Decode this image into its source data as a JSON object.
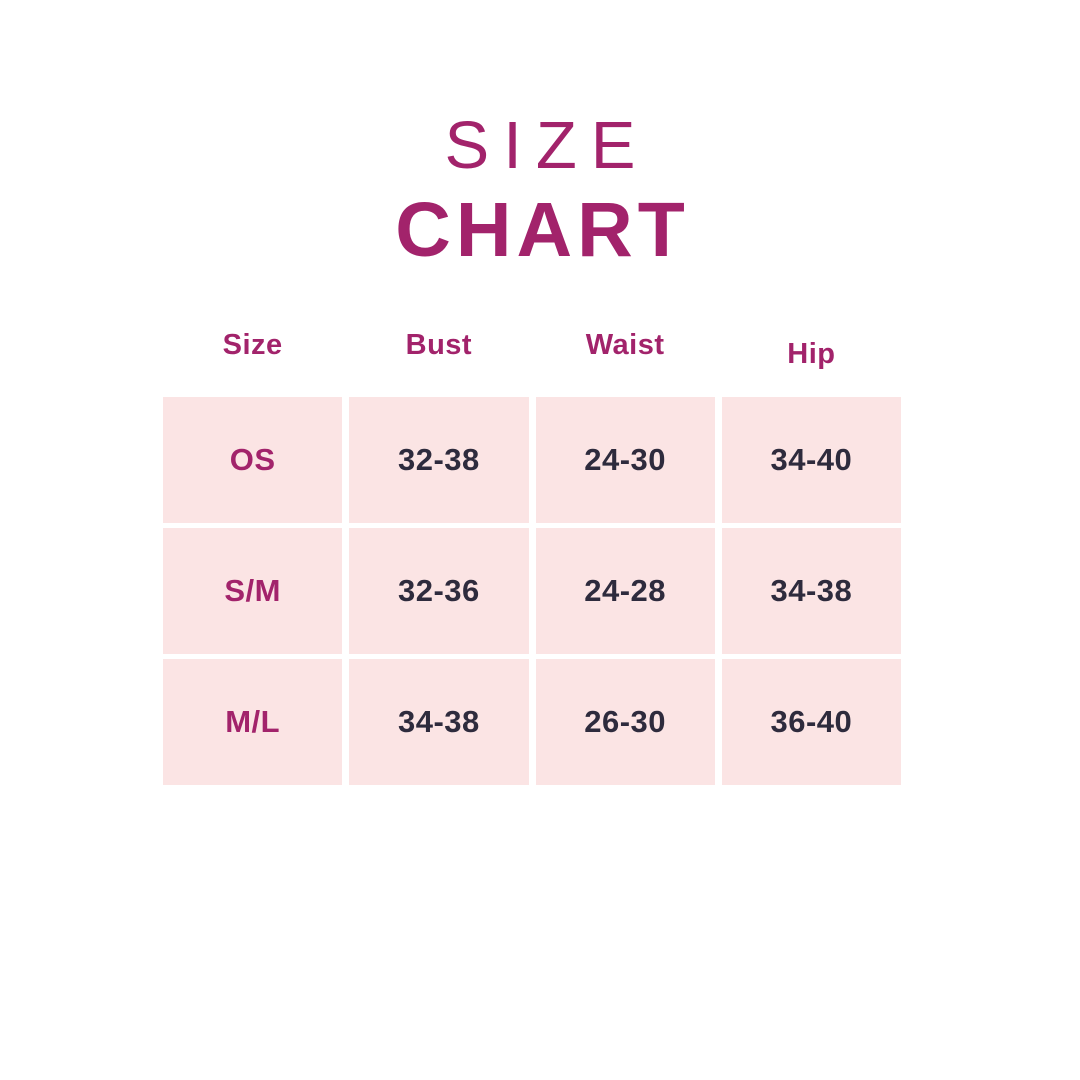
{
  "title": {
    "line1": "SIZE",
    "line2": "CHART"
  },
  "chart_data": {
    "type": "table",
    "title": "SIZE CHART",
    "columns": [
      "Size",
      "Bust",
      "Waist",
      "Hip"
    ],
    "rows": [
      [
        "OS",
        "32-38",
        "24-30",
        "34-40"
      ],
      [
        "S/M",
        "32-36",
        "24-28",
        "34-38"
      ],
      [
        "M/L",
        "34-38",
        "26-30",
        "36-40"
      ]
    ]
  },
  "colors": {
    "accent_magenta": "#a2236b",
    "cell_background": "#fbe4e4",
    "value_text": "#2e2b3d",
    "page_background": "#ffffff"
  }
}
